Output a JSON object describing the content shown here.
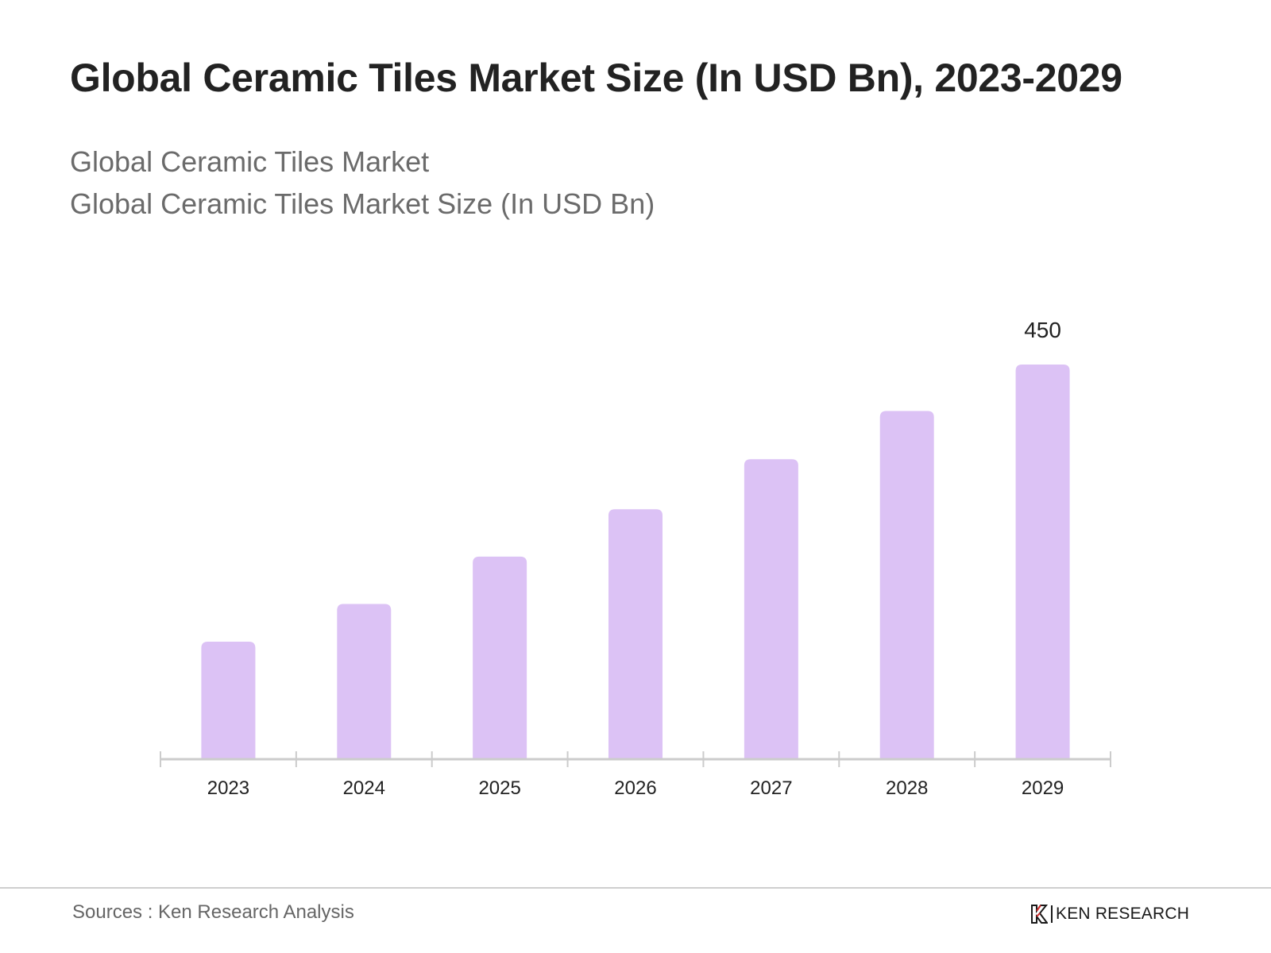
{
  "title": "Global Ceramic Tiles Market Size (In USD Bn), 2023-2029",
  "subtitle_1": "Global Ceramic Tiles Market",
  "subtitle_2": "Global Ceramic Tiles Market Size (In USD Bn)",
  "footer": {
    "source": "Sources : Ken Research Analysis",
    "logo_text": "KEN RESEARCH",
    "logo_icon": "ken-research-k-logo"
  },
  "colors": {
    "bar": "#dcc2f5",
    "axis": "#cccccc",
    "text": "#222222"
  },
  "chart_data": {
    "type": "bar",
    "categories": [
      "2023",
      "2024",
      "2025",
      "2026",
      "2027",
      "2028",
      "2029"
    ],
    "series": [
      {
        "values": [
          134,
          177,
          231,
          285,
          342,
          397,
          450
        ]
      }
    ],
    "data_labels": [
      {
        "category": "2029",
        "text": "450"
      }
    ],
    "xlabel": "",
    "ylabel": "",
    "ylim": [
      0,
      450
    ],
    "grid": false,
    "legend": "none"
  }
}
